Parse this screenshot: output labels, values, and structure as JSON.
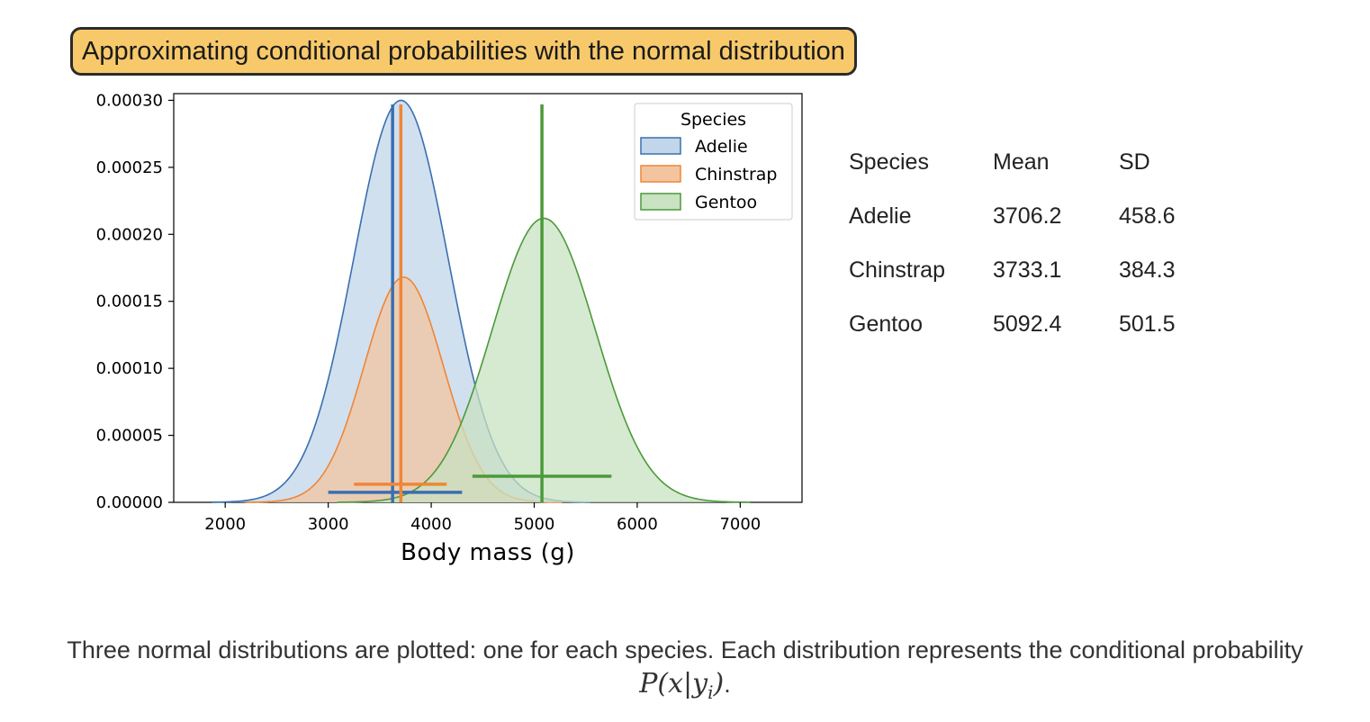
{
  "header": {
    "title": "Approximating conditional probabilities with the normal distribution"
  },
  "chart_data": {
    "type": "area",
    "xlabel": "Body mass (g)",
    "ylabel": "",
    "xlim": [
      1500,
      7600
    ],
    "ylim": [
      0,
      0.000305
    ],
    "x_ticks": [
      2000,
      3000,
      4000,
      5000,
      6000,
      7000
    ],
    "y_ticks": [
      0,
      5e-05,
      0.0001,
      0.00015,
      0.0002,
      0.00025,
      0.0003
    ],
    "y_tick_labels": [
      "0.00000",
      "0.00005",
      "0.00010",
      "0.00015",
      "0.00020",
      "0.00025",
      "0.00030"
    ],
    "grid": false,
    "legend": {
      "title": "Species",
      "position": "top-right"
    },
    "series": [
      {
        "name": "Adelie",
        "mean": 3706.2,
        "sd": 458.6,
        "peak_density": 0.0003,
        "mean_line_x": 3625,
        "range_bar": [
          3000,
          4300
        ],
        "range_bar_y": 7.5e-06,
        "color": "#3a6fb0",
        "fill": "#c2d6ea"
      },
      {
        "name": "Chinstrap",
        "mean": 3733.1,
        "sd": 384.3,
        "peak_density": 0.000168,
        "mean_line_x": 3705,
        "range_bar": [
          3250,
          4150
        ],
        "range_bar_y": 1.35e-05,
        "color": "#ef8636",
        "fill": "#f2c5a0"
      },
      {
        "name": "Gentoo",
        "mean": 5092.4,
        "sd": 501.5,
        "peak_density": 0.000212,
        "mean_line_x": 5075,
        "range_bar": [
          4400,
          5750
        ],
        "range_bar_y": 1.95e-05,
        "color": "#4b9a3a",
        "fill": "#c8e2c2"
      }
    ]
  },
  "stats_table": {
    "headers": [
      "Species",
      "Mean",
      "SD"
    ],
    "rows": [
      [
        "Adelie",
        "3706.2",
        "458.6"
      ],
      [
        "Chinstrap",
        "3733.1",
        "384.3"
      ],
      [
        "Gentoo",
        "5092.4",
        "501.5"
      ]
    ]
  },
  "caption": {
    "text": "Three normal distributions are plotted: one for each species. Each distribution represents the conditional probability ",
    "math": "P(x|y",
    "math_sub": "i",
    "math_end": ")",
    "end": "."
  }
}
